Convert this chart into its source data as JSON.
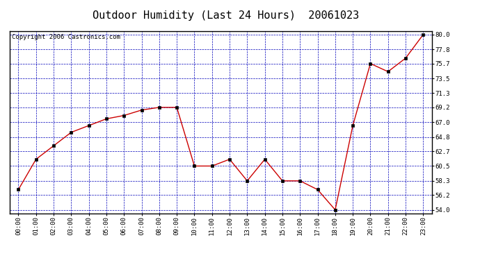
{
  "title": "Outdoor Humidity (Last 24 Hours)  20061023",
  "copyright_text": "Copyright 2006 Castronics.com",
  "x_labels": [
    "00:00",
    "01:00",
    "02:00",
    "03:00",
    "04:00",
    "05:00",
    "06:00",
    "07:00",
    "08:00",
    "09:00",
    "10:00",
    "11:00",
    "12:00",
    "13:00",
    "14:00",
    "15:00",
    "16:00",
    "17:00",
    "18:00",
    "19:00",
    "20:00",
    "21:00",
    "22:00",
    "23:00"
  ],
  "x_values": [
    0,
    1,
    2,
    3,
    4,
    5,
    6,
    7,
    8,
    9,
    10,
    11,
    12,
    13,
    14,
    15,
    16,
    17,
    18,
    19,
    20,
    21,
    22,
    23
  ],
  "y_values": [
    57.0,
    61.5,
    63.5,
    65.5,
    66.5,
    67.5,
    68.0,
    68.8,
    69.2,
    69.2,
    60.5,
    60.5,
    61.5,
    58.3,
    61.5,
    58.3,
    58.3,
    57.0,
    54.0,
    66.5,
    75.7,
    74.5,
    76.5,
    80.0
  ],
  "y_ticks": [
    54.0,
    56.2,
    58.3,
    60.5,
    62.7,
    64.8,
    67.0,
    69.2,
    71.3,
    73.5,
    75.7,
    77.8,
    80.0
  ],
  "ylim": [
    53.5,
    80.5
  ],
  "xlim": [
    -0.5,
    23.5
  ],
  "line_color": "#cc0000",
  "marker_color": "#000000",
  "bg_color": "#ffffff",
  "plot_bg_color": "#ffffff",
  "grid_color": "#0000bb",
  "title_fontsize": 11,
  "copyright_fontsize": 6.5,
  "tick_fontsize": 6.5
}
